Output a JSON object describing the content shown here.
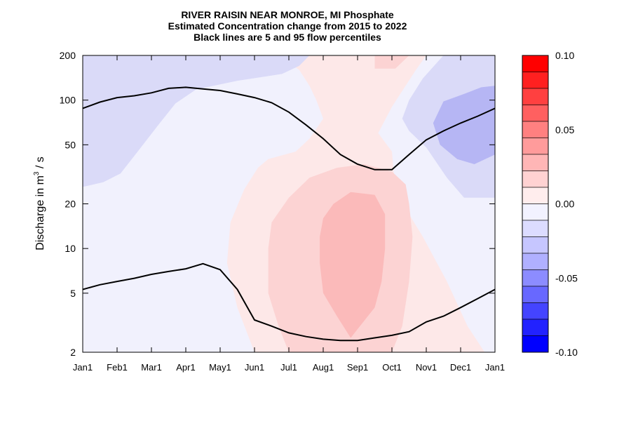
{
  "title": {
    "line1": "RIVER RAISIN NEAR MONROE, MI  Phosphate",
    "line2": "Estimated Concentration change from 2015 to 2022",
    "line3": "Black lines are 5 and 95 flow percentiles"
  },
  "chart_data": {
    "type": "heatmap",
    "title": "RIVER RAISIN NEAR MONROE, MI  Phosphate",
    "subtitle": [
      "Estimated Concentration change from 2015 to 2022",
      "Black lines are 5 and 95 flow percentiles"
    ],
    "xlabel": "",
    "ylabel": "Discharge in m³/s",
    "ylabel_parts": {
      "pre": "Discharge in m",
      "sup": "3",
      "post": " / s"
    },
    "y_scale": "log",
    "ylim": [
      2,
      200
    ],
    "xlim": [
      "Jan1",
      "Jan1"
    ],
    "x_ticks": [
      "Jan1",
      "Feb1",
      "Mar1",
      "Apr1",
      "May1",
      "Jun1",
      "Jul1",
      "Aug1",
      "Sep1",
      "Oct1",
      "Nov1",
      "Dec1",
      "Jan1"
    ],
    "y_ticks": [
      "2",
      "5",
      "10",
      "20",
      "50",
      "100",
      "200"
    ],
    "y_tick_values": [
      2,
      5,
      10,
      20,
      50,
      100,
      200
    ],
    "colorbar": {
      "range": [
        -0.1,
        0.1
      ],
      "tick_labels": [
        "0.10",
        "0.05",
        "0.00",
        "-0.05",
        "-0.10"
      ],
      "tick_values": [
        0.1,
        0.05,
        0.0,
        -0.05,
        -0.1
      ],
      "colors_top_to_bottom": [
        "#ff0000",
        "#ff2020",
        "#ff4040",
        "#ff6060",
        "#ff8080",
        "#ff9b9b",
        "#ffb6b6",
        "#ffd2d2",
        "#ffeded",
        "#f2f2ff",
        "#dcdcff",
        "#c6c6ff",
        "#b0b0ff",
        "#8c8cff",
        "#6868ff",
        "#4444ff",
        "#2222ff",
        "#0000ff"
      ]
    },
    "fill_colors": {
      "blue_mid": "#b6b6f4",
      "blue_light": "#dadaf8",
      "neutral": "#f1f1fd",
      "pink_light": "#fde8e8",
      "pink_mid": "#fcd3d3",
      "pink_strong": "#fbbaba"
    },
    "percentile_95": [
      {
        "month": 0,
        "q": 88
      },
      {
        "month": 0.5,
        "q": 97
      },
      {
        "month": 1,
        "q": 104
      },
      {
        "month": 1.5,
        "q": 107
      },
      {
        "month": 2,
        "q": 112
      },
      {
        "month": 2.5,
        "q": 120
      },
      {
        "month": 3,
        "q": 122
      },
      {
        "month": 3.5,
        "q": 119
      },
      {
        "month": 4,
        "q": 116
      },
      {
        "month": 4.5,
        "q": 110
      },
      {
        "month": 5,
        "q": 104
      },
      {
        "month": 5.5,
        "q": 96
      },
      {
        "month": 6,
        "q": 83
      },
      {
        "month": 6.5,
        "q": 68
      },
      {
        "month": 7,
        "q": 55
      },
      {
        "month": 7.5,
        "q": 43
      },
      {
        "month": 8,
        "q": 37
      },
      {
        "month": 8.5,
        "q": 34
      },
      {
        "month": 9,
        "q": 34
      },
      {
        "month": 9.5,
        "q": 43
      },
      {
        "month": 10,
        "q": 54
      },
      {
        "month": 10.5,
        "q": 62
      },
      {
        "month": 11,
        "q": 70
      },
      {
        "month": 11.5,
        "q": 78
      },
      {
        "month": 12,
        "q": 88
      }
    ],
    "percentile_5": [
      {
        "month": 0,
        "q": 5.3
      },
      {
        "month": 0.5,
        "q": 5.7
      },
      {
        "month": 1,
        "q": 6.0
      },
      {
        "month": 1.5,
        "q": 6.3
      },
      {
        "month": 2,
        "q": 6.7
      },
      {
        "month": 2.5,
        "q": 7.0
      },
      {
        "month": 3,
        "q": 7.3
      },
      {
        "month": 3.5,
        "q": 7.9
      },
      {
        "month": 4,
        "q": 7.2
      },
      {
        "month": 4.5,
        "q": 5.3
      },
      {
        "month": 5,
        "q": 3.3
      },
      {
        "month": 5.5,
        "q": 3.0
      },
      {
        "month": 6,
        "q": 2.7
      },
      {
        "month": 6.5,
        "q": 2.55
      },
      {
        "month": 7,
        "q": 2.45
      },
      {
        "month": 7.5,
        "q": 2.4
      },
      {
        "month": 8,
        "q": 2.4
      },
      {
        "month": 8.5,
        "q": 2.5
      },
      {
        "month": 9,
        "q": 2.6
      },
      {
        "month": 9.5,
        "q": 2.75
      },
      {
        "month": 10,
        "q": 3.2
      },
      {
        "month": 10.5,
        "q": 3.5
      },
      {
        "month": 11,
        "q": 4.0
      },
      {
        "month": 11.5,
        "q": 4.6
      },
      {
        "month": 12,
        "q": 5.3
      }
    ],
    "regions": [
      {
        "name": "pink-light-region",
        "level": "pink_light",
        "points": [
          [
            5.7,
            200
          ],
          [
            6.3,
            160
          ],
          [
            6.6,
            125
          ],
          [
            6.8,
            100
          ],
          [
            7.0,
            75
          ],
          [
            6.6,
            55
          ],
          [
            6.2,
            45
          ],
          [
            5.4,
            40
          ],
          [
            5.1,
            35
          ],
          [
            4.7,
            25
          ],
          [
            4.3,
            15
          ],
          [
            4.2,
            8
          ],
          [
            4.5,
            4
          ],
          [
            5.0,
            2
          ],
          [
            11.7,
            2
          ],
          [
            11.2,
            3
          ],
          [
            10.6,
            6
          ],
          [
            9.9,
            12
          ],
          [
            9.5,
            17
          ],
          [
            9.1,
            25
          ],
          [
            9.0,
            45
          ],
          [
            8.6,
            60
          ],
          [
            9.0,
            90
          ],
          [
            9.7,
            160
          ],
          [
            10.0,
            200
          ]
        ]
      },
      {
        "name": "pink-mid-region",
        "level": "pink_mid",
        "points": [
          [
            6.0,
            2
          ],
          [
            5.7,
            3
          ],
          [
            5.4,
            5
          ],
          [
            5.4,
            10
          ],
          [
            5.5,
            15
          ],
          [
            6.0,
            22
          ],
          [
            6.6,
            30
          ],
          [
            7.4,
            35
          ],
          [
            8.2,
            37
          ],
          [
            9.0,
            33
          ],
          [
            9.4,
            27
          ],
          [
            9.5,
            20
          ],
          [
            9.6,
            12
          ],
          [
            9.5,
            6
          ],
          [
            9.3,
            3
          ],
          [
            9.0,
            2
          ]
        ]
      },
      {
        "name": "pink-strong-region",
        "level": "pink_strong",
        "points": [
          [
            7.8,
            2.5
          ],
          [
            7.4,
            3.5
          ],
          [
            7.0,
            5
          ],
          [
            6.9,
            8
          ],
          [
            6.9,
            12
          ],
          [
            7.0,
            16
          ],
          [
            7.3,
            20
          ],
          [
            7.8,
            24
          ],
          [
            8.5,
            23
          ],
          [
            8.8,
            17
          ],
          [
            8.8,
            10
          ],
          [
            8.7,
            6
          ],
          [
            8.5,
            4
          ]
        ]
      },
      {
        "name": "pink-top-region",
        "level": "pink_mid",
        "points": [
          [
            8.5,
            200
          ],
          [
            8.5,
            163
          ],
          [
            9.1,
            163
          ],
          [
            9.5,
            200
          ]
        ]
      },
      {
        "name": "blue-left-region",
        "level": "blue_light",
        "points": [
          [
            0,
            200
          ],
          [
            6.6,
            200
          ],
          [
            6.3,
            170
          ],
          [
            5.8,
            150
          ],
          [
            4.5,
            135
          ],
          [
            3.3,
            118
          ],
          [
            2.7,
            95
          ],
          [
            2.2,
            68
          ],
          [
            1.6,
            45
          ],
          [
            1.1,
            32
          ],
          [
            0.6,
            28
          ],
          [
            0,
            26
          ]
        ]
      },
      {
        "name": "blue-right-region",
        "level": "blue_light",
        "points": [
          [
            10.5,
            200
          ],
          [
            12,
            200
          ],
          [
            12,
            22
          ],
          [
            11.1,
            22
          ],
          [
            10.6,
            30
          ],
          [
            10.0,
            48
          ],
          [
            9.5,
            62
          ],
          [
            9.3,
            75
          ],
          [
            9.5,
            100
          ],
          [
            9.9,
            140
          ]
        ]
      },
      {
        "name": "blue-right-core-region",
        "level": "blue_mid",
        "points": [
          [
            12,
            125
          ],
          [
            11.6,
            122
          ],
          [
            11.1,
            110
          ],
          [
            10.5,
            98
          ],
          [
            10.2,
            70
          ],
          [
            10.4,
            50
          ],
          [
            10.9,
            40
          ],
          [
            11.4,
            37
          ],
          [
            12,
            43
          ]
        ]
      }
    ]
  }
}
